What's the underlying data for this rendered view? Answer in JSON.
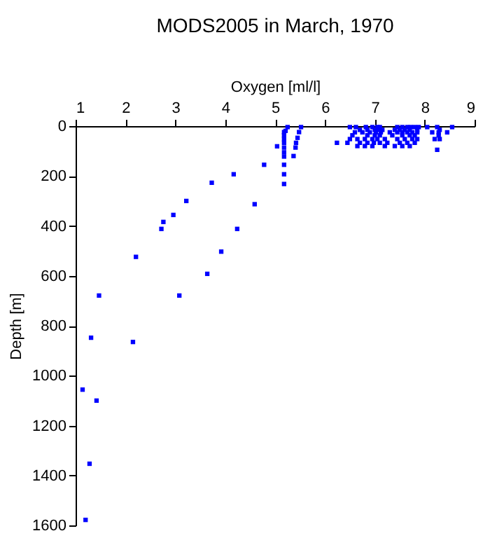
{
  "chart_data": {
    "type": "scatter",
    "title": "MODS2005 in March, 1970",
    "xlabel": "Oxygen [ml/l]",
    "ylabel": "Depth [m]",
    "xlim": [
      1,
      9
    ],
    "xticks": [
      1,
      2,
      3,
      4,
      5,
      6,
      7,
      8,
      9
    ],
    "ylim": [
      1600,
      0
    ],
    "yticks": [
      0,
      200,
      400,
      600,
      800,
      1000,
      1200,
      1400,
      1600
    ],
    "grid": false,
    "marker": "square",
    "series": [
      {
        "color": "#0000ff",
        "x": [
          1.31,
          2.15,
          1.14,
          1.42,
          1.28,
          1.2,
          1.47,
          3.08,
          2.21,
          3.64,
          3.92,
          2.72,
          2.76,
          2.96,
          3.22,
          4.24,
          4.59,
          3.73,
          4.17,
          4.78,
          5.04,
          5.18,
          5.18,
          5.18,
          5.18,
          5.18,
          5.18,
          5.18,
          5.18,
          5.18,
          5.18,
          5.25,
          5.21,
          5.52,
          5.48,
          5.45,
          5.42,
          5.41,
          5.37,
          6.24,
          6.5,
          6.62,
          6.82,
          6.95,
          7.05,
          7.1,
          7.45,
          7.55,
          7.65,
          7.72,
          7.8,
          7.88,
          8.05,
          8.25,
          8.55,
          6.7,
          6.85,
          7.0,
          7.08,
          7.15,
          7.4,
          7.5,
          7.6,
          7.7,
          7.85,
          8.3,
          6.6,
          6.75,
          6.9,
          7.02,
          7.12,
          7.3,
          7.45,
          7.55,
          7.65,
          7.75,
          7.85,
          8.15,
          8.28,
          8.45,
          6.55,
          6.85,
          7.0,
          7.1,
          7.35,
          7.55,
          7.7,
          7.8,
          8.28,
          6.5,
          6.65,
          6.8,
          6.95,
          7.05,
          7.2,
          7.45,
          7.6,
          7.75,
          7.85,
          8.2,
          8.3,
          6.45,
          6.7,
          6.85,
          6.98,
          7.1,
          7.25,
          7.5,
          7.65,
          7.8,
          6.65,
          6.8,
          6.95,
          7.2,
          7.4,
          7.55,
          7.7,
          8.25
        ],
        "values": [
          848,
          865,
          1056,
          1100,
          1353,
          1578,
          679,
          679,
          524,
          592,
          503,
          412,
          384,
          356,
          300,
          412,
          313,
          227,
          193,
          155,
          81,
          24,
          37,
          52,
          67,
          86,
          105,
          122,
          155,
          193,
          232,
          4,
          19,
          4,
          24,
          47,
          67,
          86,
          120,
          67,
          4,
          4,
          4,
          4,
          4,
          4,
          4,
          4,
          4,
          4,
          4,
          4,
          4,
          4,
          4,
          15,
          15,
          15,
          15,
          15,
          15,
          15,
          15,
          15,
          15,
          15,
          25,
          25,
          25,
          25,
          25,
          25,
          25,
          25,
          25,
          25,
          25,
          25,
          25,
          25,
          37,
          37,
          37,
          37,
          37,
          37,
          37,
          37,
          37,
          52,
          52,
          52,
          52,
          52,
          52,
          52,
          52,
          52,
          52,
          52,
          52,
          67,
          67,
          67,
          67,
          67,
          67,
          67,
          67,
          67,
          80,
          80,
          80,
          80,
          80,
          80,
          80,
          95
        ]
      }
    ]
  }
}
